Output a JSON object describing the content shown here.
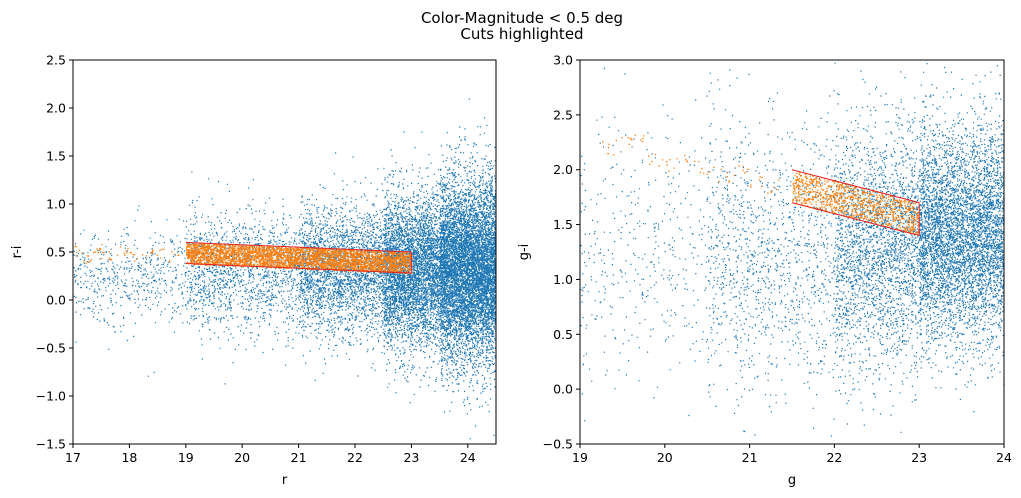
{
  "figure": {
    "title_line1": "Color-Magnitude < 0.5 deg",
    "title_line2": "Cuts highlighted"
  },
  "colors": {
    "all_stars": "#1f77b4",
    "selected": "#ff7f0e",
    "cut_box": "#e8221f"
  },
  "chart_data": [
    {
      "type": "scatter",
      "xlabel": "r",
      "ylabel": "r-i",
      "xlim": [
        17,
        24.5
      ],
      "ylim": [
        -1.5,
        2.5
      ],
      "xticks": [
        17,
        18,
        19,
        20,
        21,
        22,
        23,
        24
      ],
      "xtick_labels": [
        "17",
        "18",
        "19",
        "20",
        "21",
        "22",
        "23",
        "24"
      ],
      "yticks": [
        -1.5,
        -1.0,
        -0.5,
        0.0,
        0.5,
        1.0,
        1.5,
        2.0,
        2.5
      ],
      "ytick_labels": [
        "−1.5",
        "−1.0",
        "−0.5",
        "0.0",
        "0.5",
        "1.0",
        "1.5",
        "2.0",
        "2.5"
      ],
      "grid": false,
      "series": [
        {
          "kind": "field",
          "marker_size": 1.3,
          "description_density": [
            {
              "x": [
                17,
                19
              ],
              "center": 0.25,
              "spread": 0.45,
              "n": 500
            },
            {
              "x": [
                19,
                21
              ],
              "center": 0.3,
              "spread": 0.55,
              "n": 1400
            },
            {
              "x": [
                21,
                22.5
              ],
              "center": 0.3,
              "spread": 0.6,
              "n": 2600
            },
            {
              "x": [
                22.5,
                23.5
              ],
              "center": 0.3,
              "spread": 0.7,
              "n": 4200
            },
            {
              "x": [
                23.5,
                24.5
              ],
              "center": 0.3,
              "spread": 0.85,
              "n": 7500
            }
          ]
        },
        {
          "kind": "selected",
          "marker_size": 1.3,
          "points_sample": [
            [
              17.1,
              0.52
            ],
            [
              17.2,
              0.45
            ],
            [
              17.4,
              0.48
            ],
            [
              17.5,
              0.55
            ],
            [
              17.7,
              0.47
            ],
            [
              17.9,
              0.52
            ],
            [
              18.1,
              0.45
            ],
            [
              18.3,
              0.5
            ],
            [
              18.5,
              0.48
            ],
            [
              18.8,
              0.46
            ],
            [
              19.2,
              0.48
            ],
            [
              19.5,
              0.45
            ],
            [
              19.8,
              0.46
            ],
            [
              20.1,
              0.47
            ],
            [
              20.4,
              0.44
            ]
          ],
          "band": {
            "x": [
              19.0,
              23.0
            ],
            "upper": [
              0.6,
              0.5
            ],
            "lower": [
              0.38,
              0.28
            ],
            "n": 3500
          }
        }
      ],
      "cut_box": {
        "x": [
          19.0,
          23.0
        ],
        "upper": [
          0.6,
          0.5
        ],
        "lower": [
          0.38,
          0.28
        ]
      }
    },
    {
      "type": "scatter",
      "xlabel": "g",
      "ylabel": "g-i",
      "xlim": [
        19,
        24
      ],
      "ylim": [
        -0.5,
        3.0
      ],
      "xticks": [
        19,
        20,
        21,
        22,
        23,
        24
      ],
      "xtick_labels": [
        "19",
        "20",
        "21",
        "22",
        "23",
        "24"
      ],
      "yticks": [
        -0.5,
        0.0,
        0.5,
        1.0,
        1.5,
        2.0,
        2.5,
        3.0
      ],
      "ytick_labels": [
        "−0.5",
        "0.0",
        "0.5",
        "1.0",
        "1.5",
        "2.0",
        "2.5",
        "3.0"
      ],
      "grid": false,
      "series": [
        {
          "kind": "field",
          "marker_size": 1.3,
          "description_density": [
            {
              "x": [
                19,
                20.5
              ],
              "center": 1.2,
              "spread": 1.1,
              "n": 400
            },
            {
              "x": [
                20.5,
                22
              ],
              "center": 1.2,
              "spread": 1.1,
              "n": 1200
            },
            {
              "x": [
                22,
                23
              ],
              "center": 1.3,
              "spread": 1.0,
              "n": 2500
            },
            {
              "x": [
                23,
                24
              ],
              "center": 1.4,
              "spread": 0.9,
              "n": 5000
            }
          ]
        },
        {
          "kind": "selected",
          "marker_size": 1.3,
          "points_sample": [
            [
              19.3,
              2.2
            ],
            [
              19.5,
              2.25
            ],
            [
              19.7,
              2.3
            ],
            [
              19.9,
              2.1
            ],
            [
              20.1,
              2.05
            ],
            [
              20.3,
              2.1
            ],
            [
              20.5,
              2.0
            ],
            [
              20.7,
              1.95
            ],
            [
              20.9,
              2.0
            ],
            [
              21.1,
              1.9
            ],
            [
              21.3,
              1.85
            ]
          ],
          "band": {
            "x": [
              21.5,
              23.0
            ],
            "upper": [
              2.0,
              1.7
            ],
            "lower": [
              1.7,
              1.4
            ],
            "n": 900
          }
        }
      ],
      "cut_box": {
        "x": [
          21.5,
          23.0
        ],
        "upper": [
          2.0,
          1.7
        ],
        "lower": [
          1.7,
          1.4
        ]
      }
    }
  ]
}
